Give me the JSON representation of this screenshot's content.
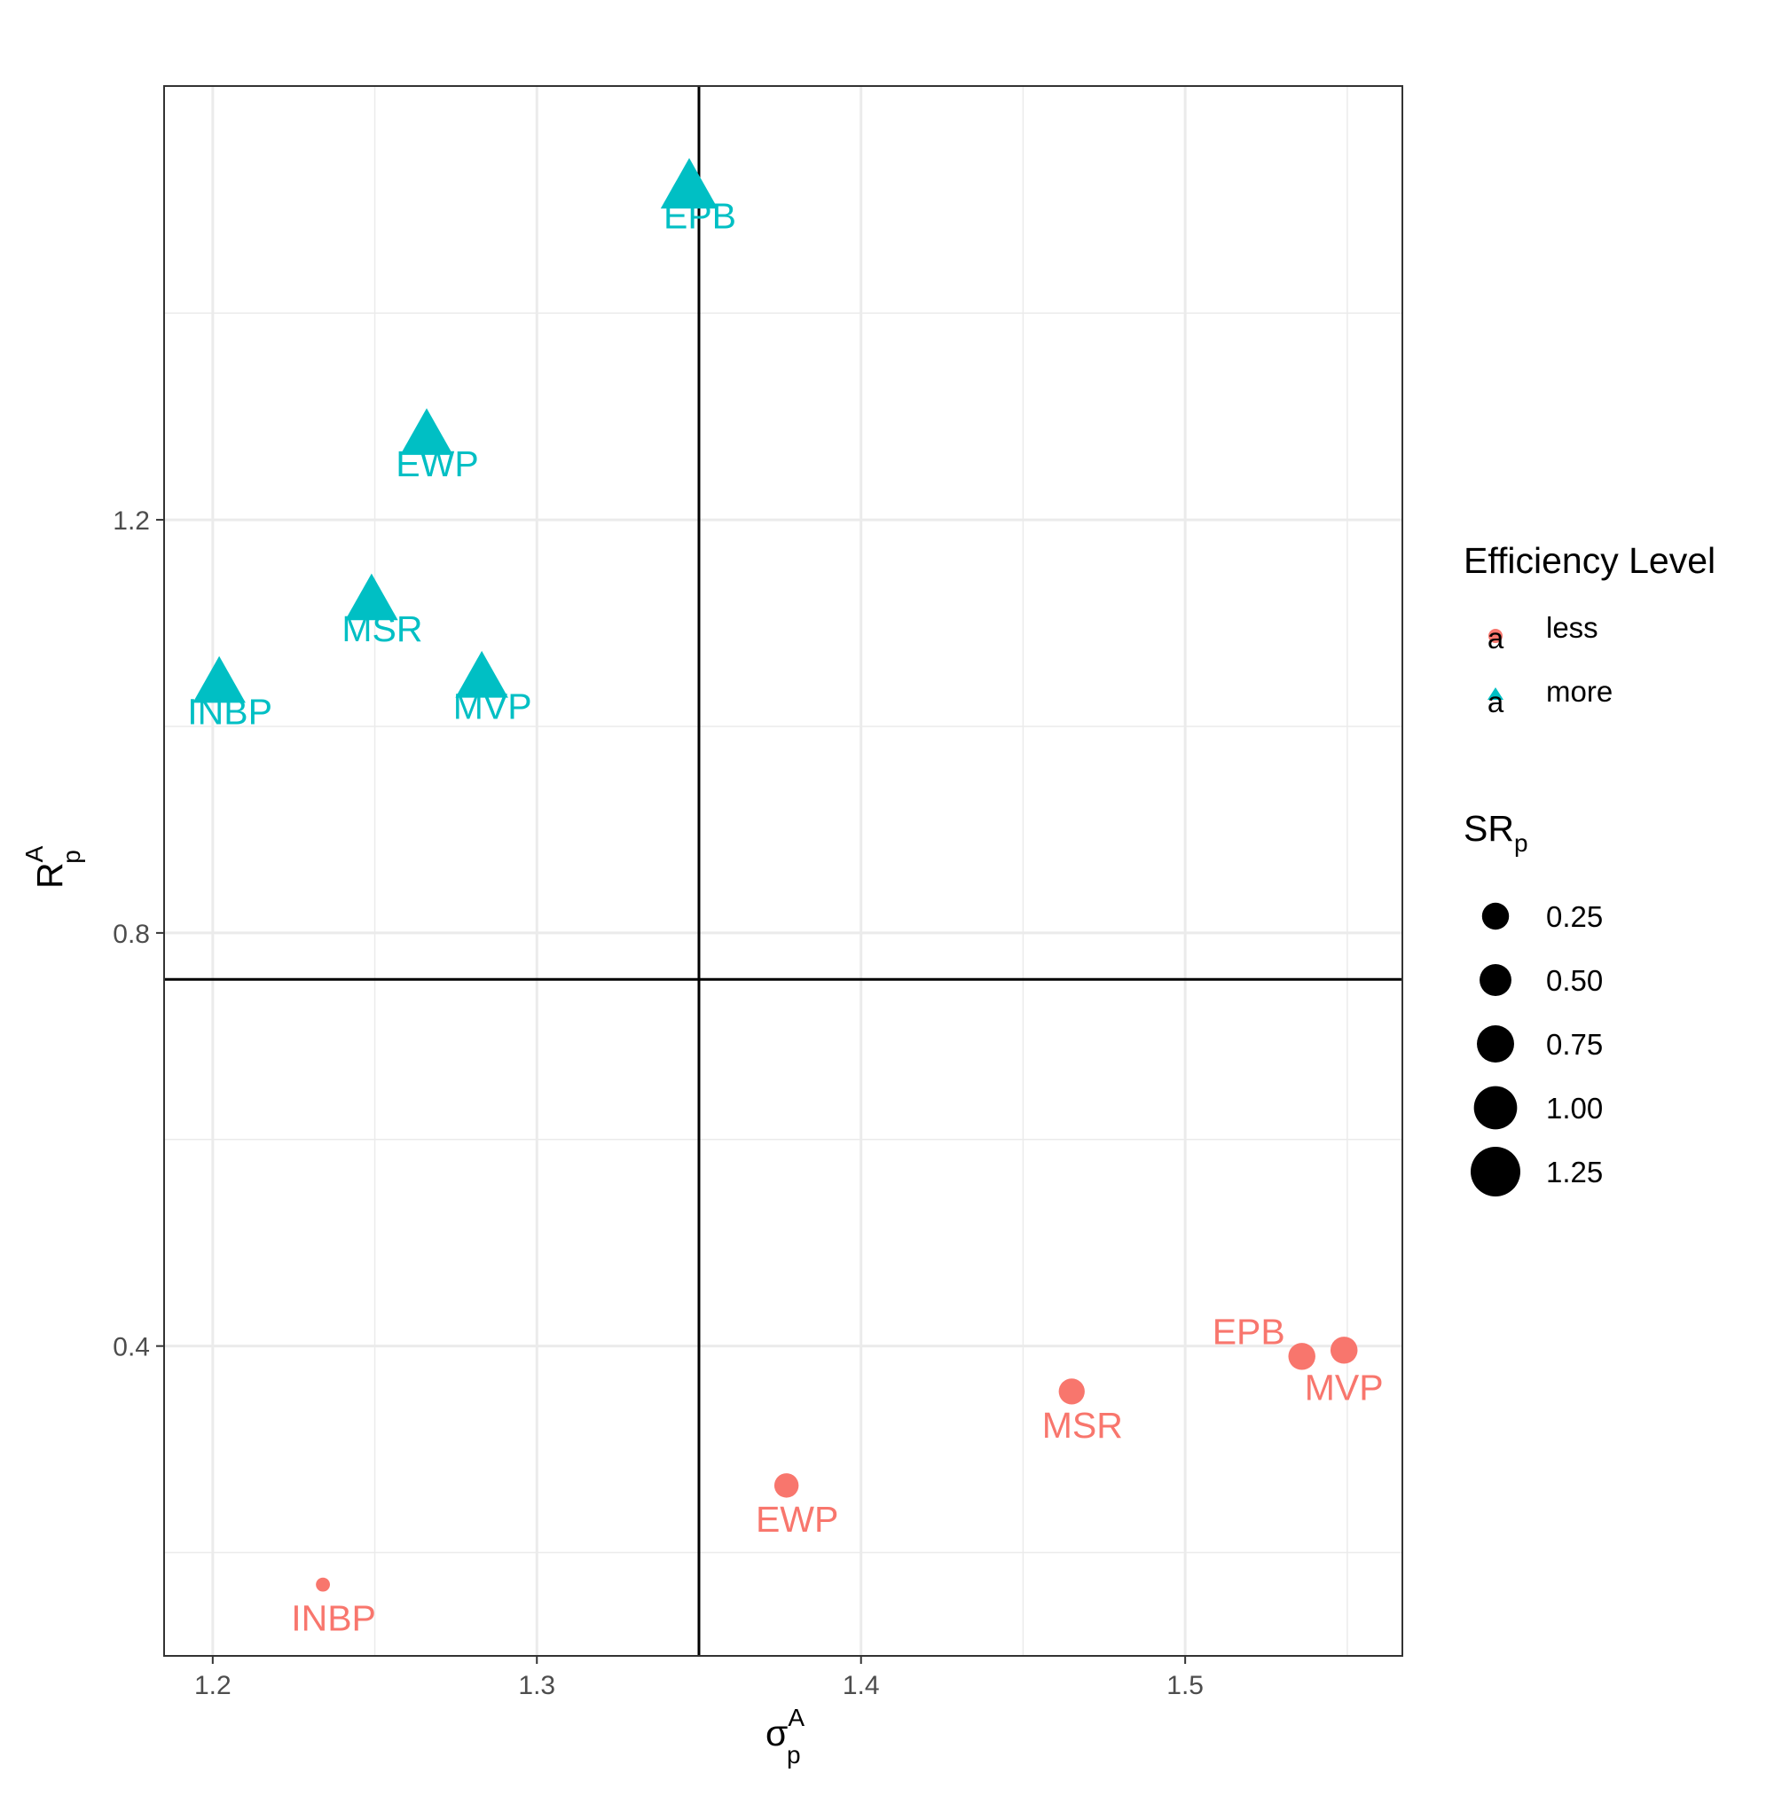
{
  "chart_data": {
    "type": "scatter",
    "xlabel": {
      "base": "σ",
      "sup": "A",
      "sub": "p"
    },
    "ylabel": {
      "base": "R",
      "sup": "A",
      "sub": "p"
    },
    "xlim": [
      1.185,
      1.567
    ],
    "ylim": [
      0.1,
      1.62
    ],
    "x_ticks": [
      1.2,
      1.3,
      1.4,
      1.5
    ],
    "x_tick_labels": [
      "1.2",
      "1.3",
      "1.4",
      "1.5"
    ],
    "y_ticks": [
      0.4,
      0.8,
      1.2
    ],
    "y_tick_labels": [
      "0.4",
      "0.8",
      "1.2"
    ],
    "x_minor_ticks": [
      1.25,
      1.35,
      1.45,
      1.55
    ],
    "y_minor_ticks": [
      0.2,
      0.6,
      1.0,
      1.4
    ],
    "grid": true,
    "reference_lines": {
      "vertical_x": 1.35,
      "horizontal_y": 0.755
    },
    "series": [
      {
        "name": "less",
        "shape": "circle",
        "color": "#F8766D",
        "points": [
          {
            "label": "INBP",
            "x": 1.234,
            "y": 0.169,
            "size": 0.05
          },
          {
            "label": "EWP",
            "x": 1.377,
            "y": 0.265,
            "size": 0.45
          },
          {
            "label": "MSR",
            "x": 1.465,
            "y": 0.356,
            "size": 0.55
          },
          {
            "label": "EPB",
            "x": 1.536,
            "y": 0.39,
            "size": 0.62
          },
          {
            "label": "MVP",
            "x": 1.549,
            "y": 0.396,
            "size": 0.62
          }
        ]
      },
      {
        "name": "more",
        "shape": "triangle",
        "color": "#00BFC4",
        "points": [
          {
            "label": "INBP",
            "x": 1.202,
            "y": 1.04,
            "size": 1.05
          },
          {
            "label": "MSR",
            "x": 1.249,
            "y": 1.12,
            "size": 1.05
          },
          {
            "label": "MVP",
            "x": 1.283,
            "y": 1.045,
            "size": 1.05
          },
          {
            "label": "EWP",
            "x": 1.266,
            "y": 1.28,
            "size": 1.05
          },
          {
            "label": "EPB",
            "x": 1.347,
            "y": 1.52,
            "size": 1.3
          }
        ]
      }
    ],
    "legend": {
      "color_title": "Efficiency Level",
      "color_items": [
        {
          "label": "less",
          "color": "#F8766D",
          "shape": "circle"
        },
        {
          "label": "more",
          "color": "#00BFC4",
          "shape": "triangle"
        }
      ],
      "size_title": {
        "base": "SR",
        "sub": "p"
      },
      "size_items": [
        {
          "label": "0.25",
          "value": 0.25
        },
        {
          "label": "0.50",
          "value": 0.5
        },
        {
          "label": "0.75",
          "value": 0.75
        },
        {
          "label": "1.00",
          "value": 1.0
        },
        {
          "label": "1.25",
          "value": 1.25
        }
      ],
      "key_glyph": "a",
      "placement": "right"
    }
  }
}
